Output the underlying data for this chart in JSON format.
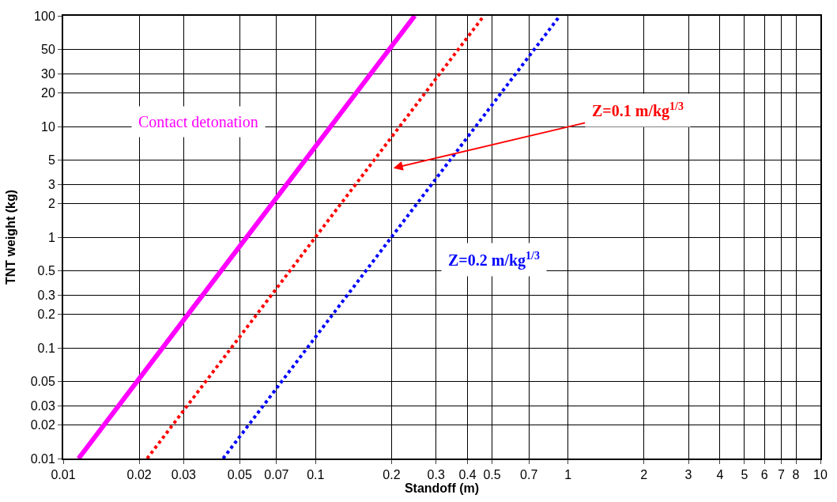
{
  "chart_data": {
    "type": "line",
    "xlabel": "Standoff (m)",
    "ylabel": "TNT weight (kg)",
    "log": "xy",
    "grid": true,
    "marker": "none",
    "xlim": [
      0.01,
      10
    ],
    "ylim": [
      0.01,
      100
    ],
    "xticks": [
      0.01,
      0.02,
      0.03,
      0.05,
      0.07,
      0.1,
      0.2,
      0.3,
      0.4,
      0.5,
      0.7,
      1,
      2,
      3,
      4,
      5,
      6,
      7,
      8,
      10
    ],
    "yticks": [
      0.01,
      0.02,
      0.03,
      0.05,
      0.1,
      0.2,
      0.3,
      0.5,
      1,
      2,
      3,
      5,
      10,
      20,
      30,
      50,
      100
    ],
    "series": [
      {
        "color": "#ff00ff",
        "x": [
          0.0115,
          0.247
        ],
        "values": [
          0.01,
          100
        ],
        "line_style": "solid"
      },
      {
        "color": "#ff0000",
        "x": [
          0.0215,
          0.464
        ],
        "values": [
          0.01,
          100
        ],
        "line_style": "dotted"
      },
      {
        "color": "#0000ff",
        "x": [
          0.043,
          0.928
        ],
        "values": [
          0.01,
          100
        ],
        "line_style": "dotted"
      }
    ],
    "annotations": [
      "Contact detonation",
      "Z=0.1 m/kg$^{1/3}$",
      "Z=0.2 m/kg$^{1/3}$"
    ]
  }
}
